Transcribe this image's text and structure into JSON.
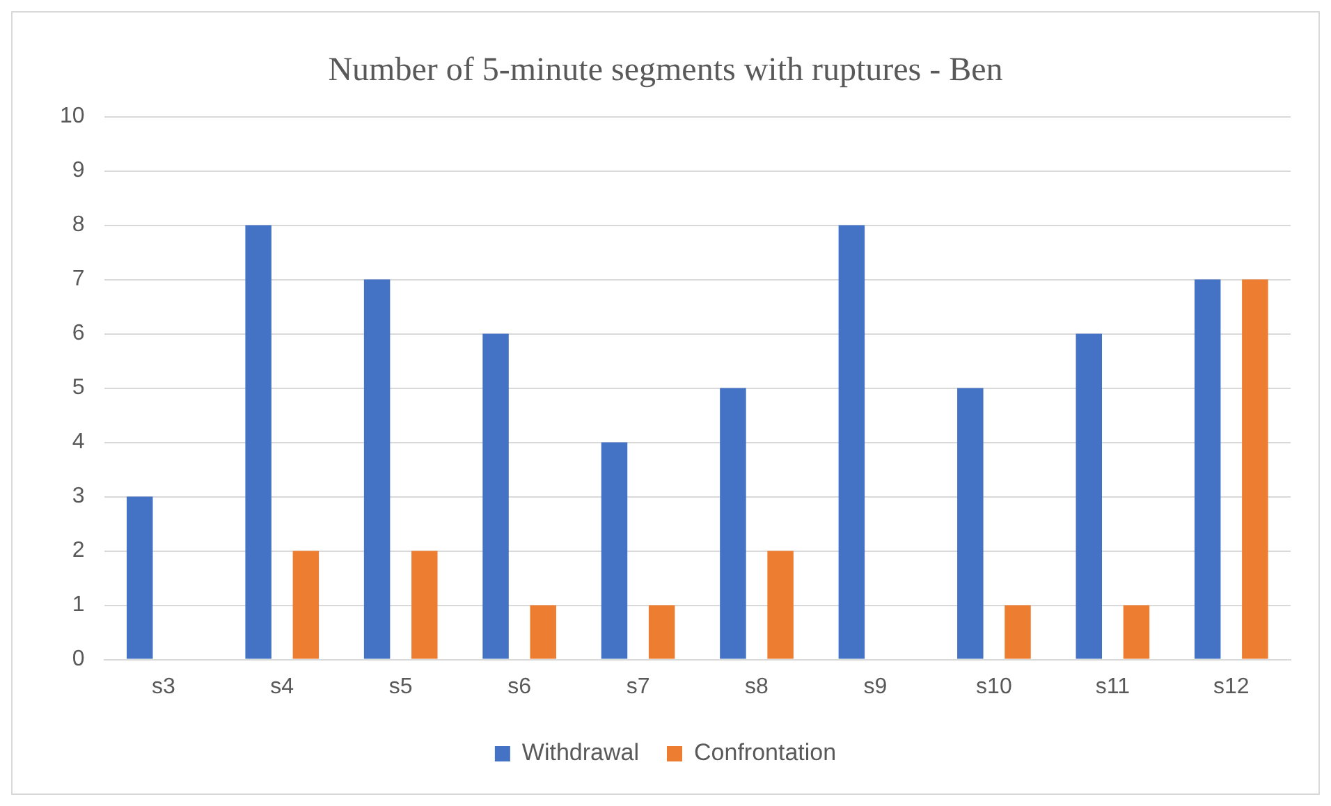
{
  "chart_data": {
    "type": "bar",
    "title": "Number of 5-minute segments with ruptures - Ben",
    "categories": [
      "s3",
      "s4",
      "s5",
      "s6",
      "s7",
      "s8",
      "s9",
      "s10",
      "s11",
      "s12"
    ],
    "series": [
      {
        "name": "Withdrawal",
        "color": "#4472c4",
        "values": [
          3,
          8,
          7,
          6,
          4,
          5,
          8,
          5,
          6,
          7
        ]
      },
      {
        "name": "Confrontation",
        "color": "#ed7d31",
        "values": [
          0,
          2,
          2,
          1,
          1,
          2,
          0,
          1,
          1,
          7
        ]
      }
    ],
    "ylim": [
      0,
      10
    ],
    "yticks": [
      0,
      1,
      2,
      3,
      4,
      5,
      6,
      7,
      8,
      9,
      10
    ],
    "grid": "y",
    "legend": "bottom"
  }
}
